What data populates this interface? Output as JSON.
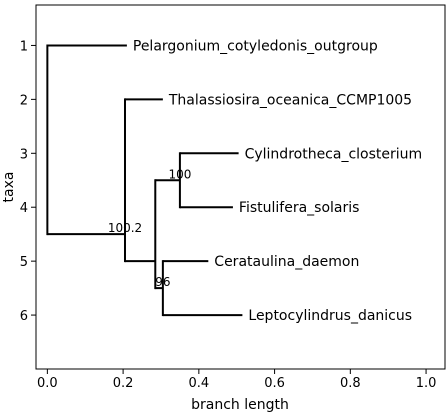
{
  "chart_data": {
    "type": "phylogenetic-tree",
    "xlabel": "branch length",
    "ylabel": "taxa",
    "xlim": [
      -0.03,
      1.05
    ],
    "ylim": [
      7.0,
      0.25
    ],
    "xticks": [
      0.0,
      0.2,
      0.4,
      0.6,
      0.8,
      1.0
    ],
    "xtick_labels": [
      "0.0",
      "0.2",
      "0.4",
      "0.6",
      "0.8",
      "1.0"
    ],
    "yticks": [
      1,
      2,
      3,
      4,
      5,
      6
    ],
    "ytick_labels": [
      "1",
      "2",
      "3",
      "4",
      "5",
      "6"
    ],
    "line_color": "#000000",
    "taxa": [
      {
        "name": "Pelargonium_cotyledonis_outgroup",
        "y": 1,
        "x": 0.21
      },
      {
        "name": "Thalassiosira_oceanica_CCMP1005",
        "y": 2,
        "x": 0.305
      },
      {
        "name": "Cylindrotheca_closterium",
        "y": 3,
        "x": 0.505
      },
      {
        "name": "Fistulifera_solaris",
        "y": 4,
        "x": 0.49
      },
      {
        "name": "Cerataulina_daemon",
        "y": 5,
        "x": 0.425
      },
      {
        "name": "Leptocylindrus_danicus",
        "y": 6,
        "x": 0.515
      }
    ],
    "internal_nodes": [
      {
        "id": "root",
        "x": 0.0,
        "y": 3.25,
        "support": ""
      },
      {
        "id": "n1",
        "x": 0.205,
        "y": 4.5,
        "support": "100.2"
      },
      {
        "id": "n2",
        "x": 0.285,
        "y": 5.0,
        "support": ""
      },
      {
        "id": "n3",
        "x": 0.35,
        "y": 3.5,
        "support": "100"
      },
      {
        "id": "n4",
        "x": 0.305,
        "y": 5.5,
        "support": "96"
      }
    ],
    "edges": [
      {
        "from": "root",
        "to": "taxon",
        "taxon_index": 0
      },
      {
        "from": "root",
        "to": "n1"
      },
      {
        "from": "n1",
        "to": "taxon",
        "taxon_index": 1
      },
      {
        "from": "n1",
        "to": "n2"
      },
      {
        "from": "n2",
        "to": "n3"
      },
      {
        "from": "n2",
        "to": "n4"
      },
      {
        "from": "n3",
        "to": "taxon",
        "taxon_index": 2
      },
      {
        "from": "n3",
        "to": "taxon",
        "taxon_index": 3
      },
      {
        "from": "n4",
        "to": "taxon",
        "taxon_index": 4
      },
      {
        "from": "n4",
        "to": "taxon",
        "taxon_index": 5
      }
    ]
  }
}
